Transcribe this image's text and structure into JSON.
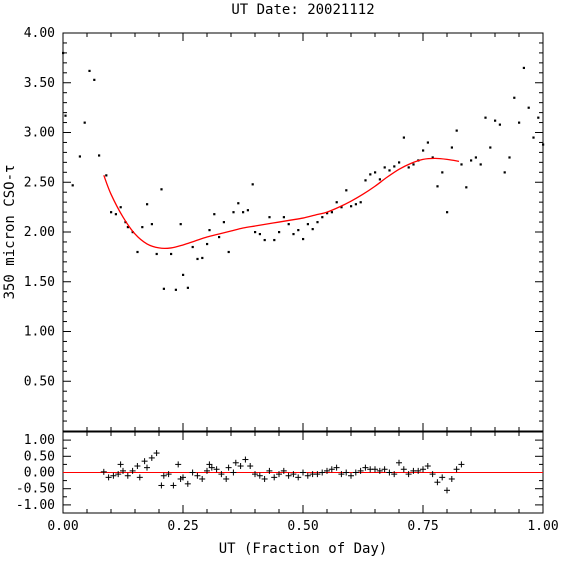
{
  "chart_data": {
    "type": "scatter",
    "title": "UT Date: 20021112",
    "xlabel": "UT (Fraction of Day)",
    "ylabel": "350 micron CSO-τ",
    "xlim": [
      0.0,
      1.0
    ],
    "x_ticks": [
      "0.00",
      "0.25",
      "0.50",
      "0.75",
      "1.00"
    ],
    "grid": false,
    "colors": {
      "points": "#000000",
      "fit": "#ff0000",
      "zero_line": "#ff0000",
      "frame": "#000000"
    },
    "top_panel": {
      "ylim": [
        0.0,
        4.0
      ],
      "y_ticks": [
        "0.50",
        "1.00",
        "1.50",
        "2.00",
        "2.50",
        "3.00",
        "3.50",
        "4.00"
      ],
      "series": [
        {
          "kind": "points",
          "x": [
            0.0,
            0.005,
            0.02,
            0.035,
            0.045,
            0.055,
            0.065,
            0.075,
            0.09,
            0.1,
            0.11,
            0.12,
            0.13,
            0.135,
            0.145,
            0.155,
            0.165,
            0.175,
            0.185,
            0.195,
            0.205,
            0.21,
            0.225,
            0.235,
            0.245,
            0.25,
            0.26,
            0.27,
            0.28,
            0.29,
            0.3,
            0.305,
            0.315,
            0.325,
            0.335,
            0.345,
            0.355,
            0.365,
            0.375,
            0.385,
            0.395,
            0.4,
            0.41,
            0.42,
            0.43,
            0.44,
            0.45,
            0.46,
            0.47,
            0.48,
            0.49,
            0.5,
            0.51,
            0.52,
            0.53,
            0.54,
            0.55,
            0.56,
            0.57,
            0.58,
            0.59,
            0.6,
            0.61,
            0.62,
            0.63,
            0.64,
            0.65,
            0.66,
            0.67,
            0.68,
            0.69,
            0.7,
            0.71,
            0.72,
            0.73,
            0.74,
            0.75,
            0.76,
            0.77,
            0.78,
            0.79,
            0.8,
            0.81,
            0.82,
            0.83,
            0.84,
            0.85,
            0.86,
            0.87,
            0.88,
            0.89,
            0.9,
            0.91,
            0.92,
            0.93,
            0.94,
            0.95,
            0.96,
            0.97,
            0.98,
            0.99,
            1.0
          ],
          "y": [
            3.8,
            3.17,
            2.47,
            2.76,
            3.1,
            3.62,
            3.53,
            2.77,
            2.57,
            2.2,
            2.18,
            2.25,
            2.1,
            2.05,
            2.0,
            1.8,
            2.05,
            2.28,
            2.08,
            1.78,
            2.43,
            1.43,
            1.78,
            1.42,
            2.08,
            1.57,
            1.44,
            1.85,
            1.73,
            1.74,
            1.88,
            2.02,
            2.18,
            1.95,
            2.1,
            1.8,
            2.2,
            2.29,
            2.2,
            2.22,
            2.48,
            2.0,
            1.98,
            1.92,
            2.15,
            1.92,
            2.0,
            2.15,
            2.08,
            1.98,
            2.02,
            1.93,
            2.08,
            2.03,
            2.1,
            2.15,
            2.19,
            2.2,
            2.3,
            2.25,
            2.42,
            2.26,
            2.28,
            2.3,
            2.52,
            2.58,
            2.6,
            2.53,
            2.65,
            2.62,
            2.66,
            2.7,
            2.95,
            2.65,
            2.68,
            2.72,
            2.82,
            2.9,
            2.75,
            2.46,
            2.6,
            2.2,
            2.85,
            3.02,
            2.68,
            2.45,
            2.72,
            2.75,
            2.68,
            3.15,
            2.85,
            3.12,
            3.08,
            2.6,
            2.75,
            3.35,
            3.1,
            3.65,
            3.25,
            2.95,
            3.15,
            2.88
          ]
        },
        {
          "kind": "fit",
          "x": [
            0.085,
            0.1,
            0.125,
            0.15,
            0.175,
            0.2,
            0.225,
            0.25,
            0.275,
            0.3,
            0.325,
            0.35,
            0.375,
            0.4,
            0.425,
            0.45,
            0.475,
            0.5,
            0.525,
            0.55,
            0.575,
            0.6,
            0.625,
            0.65,
            0.675,
            0.7,
            0.725,
            0.75,
            0.775,
            0.8,
            0.825
          ],
          "y": [
            2.57,
            2.38,
            2.15,
            1.98,
            1.88,
            1.84,
            1.84,
            1.87,
            1.91,
            1.95,
            1.98,
            2.01,
            2.04,
            2.06,
            2.08,
            2.1,
            2.12,
            2.14,
            2.17,
            2.2,
            2.25,
            2.31,
            2.38,
            2.46,
            2.55,
            2.63,
            2.69,
            2.73,
            2.74,
            2.73,
            2.71
          ]
        }
      ]
    },
    "bottom_panel": {
      "ylim": [
        -1.25,
        1.25
      ],
      "y_ticks": [
        "1.00",
        "0.50",
        "0.00",
        "-0.50",
        "-1.00"
      ],
      "zero_line": 0.0,
      "series": [
        {
          "kind": "residuals",
          "x": [
            0.085,
            0.095,
            0.105,
            0.115,
            0.12,
            0.125,
            0.135,
            0.145,
            0.155,
            0.16,
            0.17,
            0.175,
            0.185,
            0.195,
            0.205,
            0.21,
            0.22,
            0.23,
            0.24,
            0.245,
            0.25,
            0.26,
            0.27,
            0.28,
            0.29,
            0.3,
            0.305,
            0.31,
            0.32,
            0.33,
            0.34,
            0.345,
            0.355,
            0.36,
            0.37,
            0.38,
            0.39,
            0.4,
            0.41,
            0.42,
            0.43,
            0.44,
            0.45,
            0.46,
            0.47,
            0.48,
            0.49,
            0.5,
            0.51,
            0.52,
            0.53,
            0.54,
            0.55,
            0.56,
            0.57,
            0.58,
            0.59,
            0.6,
            0.61,
            0.62,
            0.63,
            0.64,
            0.65,
            0.66,
            0.67,
            0.68,
            0.69,
            0.7,
            0.71,
            0.72,
            0.73,
            0.74,
            0.75,
            0.76,
            0.77,
            0.78,
            0.79,
            0.8,
            0.81,
            0.82,
            0.83
          ],
          "y": [
            0.02,
            -0.15,
            -0.1,
            -0.05,
            0.25,
            0.05,
            -0.1,
            0.05,
            0.2,
            -0.15,
            0.35,
            0.15,
            0.45,
            0.6,
            -0.4,
            -0.1,
            -0.05,
            -0.4,
            0.25,
            -0.2,
            -0.15,
            -0.35,
            0.0,
            -0.1,
            -0.2,
            0.05,
            0.25,
            0.15,
            0.1,
            -0.05,
            -0.2,
            0.15,
            0.0,
            0.3,
            0.2,
            0.4,
            0.2,
            -0.05,
            -0.1,
            -0.2,
            0.05,
            -0.15,
            -0.05,
            0.05,
            -0.1,
            -0.05,
            -0.15,
            0.0,
            -0.1,
            -0.05,
            -0.05,
            0.0,
            0.05,
            0.1,
            0.15,
            -0.05,
            0.0,
            -0.1,
            0.0,
            0.05,
            0.15,
            0.1,
            0.1,
            0.05,
            0.1,
            0.0,
            -0.05,
            0.3,
            0.1,
            -0.05,
            0.05,
            0.05,
            0.1,
            0.2,
            -0.05,
            -0.3,
            -0.15,
            -0.55,
            -0.2,
            0.1,
            0.25
          ]
        }
      ]
    }
  }
}
